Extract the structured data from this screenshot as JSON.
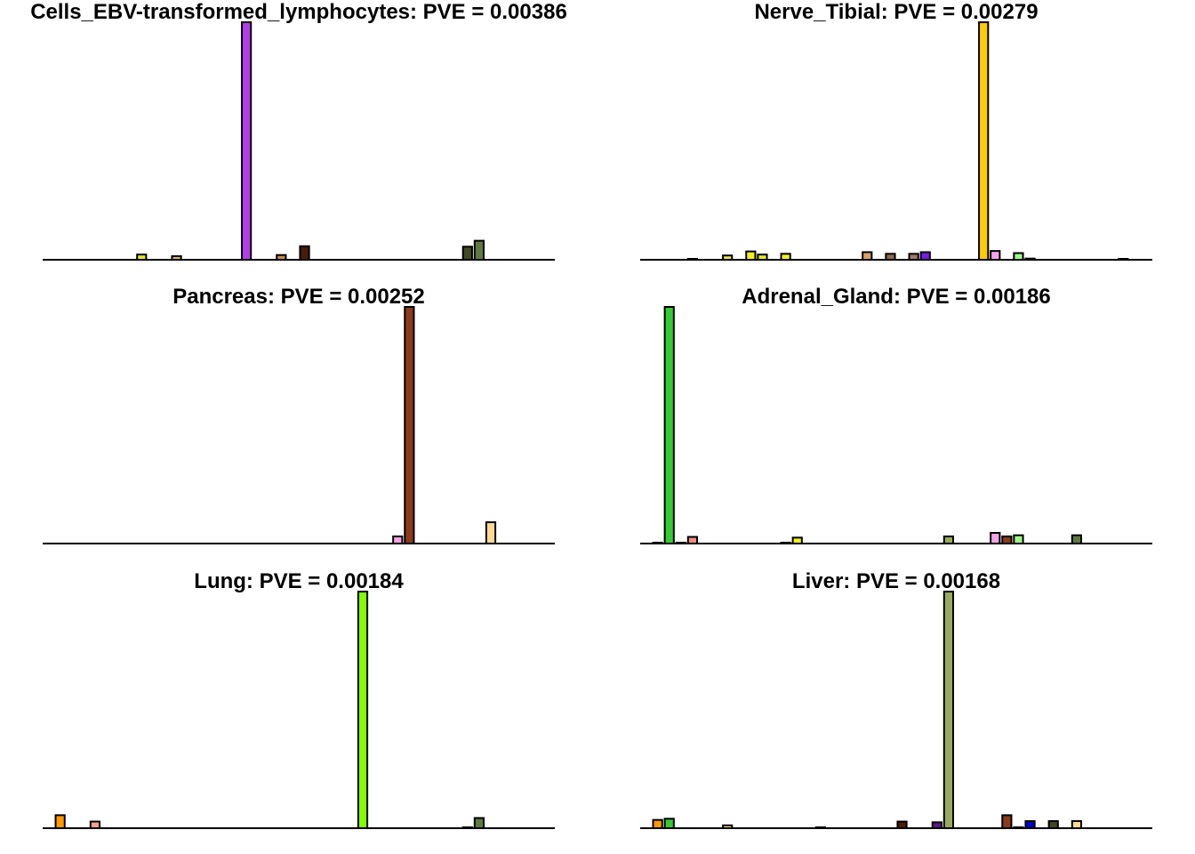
{
  "chart_data": [
    {
      "type": "bar",
      "title": "Cells_EBV-transformed_lymphocytes: PVE = 0.00386",
      "xlabel": "",
      "ylabel": "",
      "n_categories": 44,
      "ylim": [
        0,
        1
      ],
      "bars": [
        {
          "index": 8,
          "value": 0.022,
          "color": "#e6e62b"
        },
        {
          "index": 11,
          "value": 0.015,
          "color": "#d9c22b"
        },
        {
          "index": 17,
          "value": 1.0,
          "color": "#b23fe8"
        },
        {
          "index": 20,
          "value": 0.02,
          "color": "#c68c4e"
        },
        {
          "index": 22,
          "value": 0.057,
          "color": "#4a1d08"
        },
        {
          "index": 36,
          "value": 0.055,
          "color": "#3d4a22"
        },
        {
          "index": 37,
          "value": 0.08,
          "color": "#5f7a3e"
        }
      ]
    },
    {
      "type": "bar",
      "title": "Nerve_Tibial: PVE = 0.00279",
      "xlabel": "",
      "ylabel": "",
      "n_categories": 44,
      "ylim": [
        0,
        1
      ],
      "bars": [
        {
          "index": 4,
          "value": 0.003,
          "color": "#888888"
        },
        {
          "index": 7,
          "value": 0.018,
          "color": "#e6e64e"
        },
        {
          "index": 9,
          "value": 0.035,
          "color": "#f2f21a"
        },
        {
          "index": 10,
          "value": 0.022,
          "color": "#e6e62b"
        },
        {
          "index": 12,
          "value": 0.025,
          "color": "#f2f21a"
        },
        {
          "index": 19,
          "value": 0.032,
          "color": "#d9a066"
        },
        {
          "index": 21,
          "value": 0.025,
          "color": "#8b6c4f"
        },
        {
          "index": 23,
          "value": 0.025,
          "color": "#a07a6a"
        },
        {
          "index": 24,
          "value": 0.032,
          "color": "#7a1ae6"
        },
        {
          "index": 29,
          "value": 1.0,
          "color": "#ffcc00"
        },
        {
          "index": 30,
          "value": 0.037,
          "color": "#f5a3f0"
        },
        {
          "index": 32,
          "value": 0.028,
          "color": "#a3f58a"
        },
        {
          "index": 33,
          "value": 0.005,
          "color": "#4a4a30"
        },
        {
          "index": 41,
          "value": 0.002,
          "color": "#777777"
        }
      ]
    },
    {
      "type": "bar",
      "title": "Pancreas: PVE = 0.00252",
      "xlabel": "",
      "ylabel": "",
      "n_categories": 44,
      "ylim": [
        0,
        1
      ],
      "bars": [
        {
          "index": 30,
          "value": 0.03,
          "color": "#f5a3e6"
        },
        {
          "index": 31,
          "value": 1.0,
          "color": "#8b3a1a"
        },
        {
          "index": 38,
          "value": 0.09,
          "color": "#ffd98c"
        }
      ]
    },
    {
      "type": "bar",
      "title": "Adrenal_Gland: PVE = 0.00186",
      "xlabel": "",
      "ylabel": "",
      "n_categories": 44,
      "ylim": [
        0,
        1
      ],
      "bars": [
        {
          "index": 1,
          "value": 0.002,
          "color": "#777777"
        },
        {
          "index": 2,
          "value": 1.0,
          "color": "#33cc33"
        },
        {
          "index": 3,
          "value": 0.002,
          "color": "#777777"
        },
        {
          "index": 4,
          "value": 0.028,
          "color": "#f28c80"
        },
        {
          "index": 12,
          "value": 0.002,
          "color": "#777777"
        },
        {
          "index": 13,
          "value": 0.025,
          "color": "#f2f21a"
        },
        {
          "index": 26,
          "value": 0.03,
          "color": "#9aaa5a"
        },
        {
          "index": 30,
          "value": 0.045,
          "color": "#f5a3e6"
        },
        {
          "index": 31,
          "value": 0.03,
          "color": "#8b3a1a"
        },
        {
          "index": 32,
          "value": 0.035,
          "color": "#a3f58a"
        },
        {
          "index": 37,
          "value": 0.035,
          "color": "#5f7a3e"
        }
      ]
    },
    {
      "type": "bar",
      "title": "Lung: PVE = 0.00184",
      "xlabel": "",
      "ylabel": "",
      "n_categories": 44,
      "ylim": [
        0,
        1
      ],
      "bars": [
        {
          "index": 1,
          "value": 0.055,
          "color": "#ff9900"
        },
        {
          "index": 4,
          "value": 0.028,
          "color": "#f5a38c"
        },
        {
          "index": 27,
          "value": 1.0,
          "color": "#80ff00"
        },
        {
          "index": 36,
          "value": 0.003,
          "color": "#777777"
        },
        {
          "index": 37,
          "value": 0.043,
          "color": "#5f7a3e"
        }
      ]
    },
    {
      "type": "bar",
      "title": "Liver: PVE = 0.00168",
      "xlabel": "",
      "ylabel": "",
      "n_categories": 44,
      "ylim": [
        0,
        1
      ],
      "bars": [
        {
          "index": 1,
          "value": 0.035,
          "color": "#ff9900"
        },
        {
          "index": 2,
          "value": 0.04,
          "color": "#33cc33"
        },
        {
          "index": 7,
          "value": 0.012,
          "color": "#ffe680"
        },
        {
          "index": 15,
          "value": 0.003,
          "color": "#777777"
        },
        {
          "index": 22,
          "value": 0.028,
          "color": "#4a1d08"
        },
        {
          "index": 25,
          "value": 0.025,
          "color": "#5a1a8c"
        },
        {
          "index": 26,
          "value": 1.0,
          "color": "#9aaa5a"
        },
        {
          "index": 31,
          "value": 0.055,
          "color": "#8b3a1a"
        },
        {
          "index": 32,
          "value": 0.002,
          "color": "#777777"
        },
        {
          "index": 33,
          "value": 0.03,
          "color": "#0000cc"
        },
        {
          "index": 35,
          "value": 0.03,
          "color": "#3d4a22"
        },
        {
          "index": 37,
          "value": 0.03,
          "color": "#ffd98c"
        }
      ]
    }
  ]
}
